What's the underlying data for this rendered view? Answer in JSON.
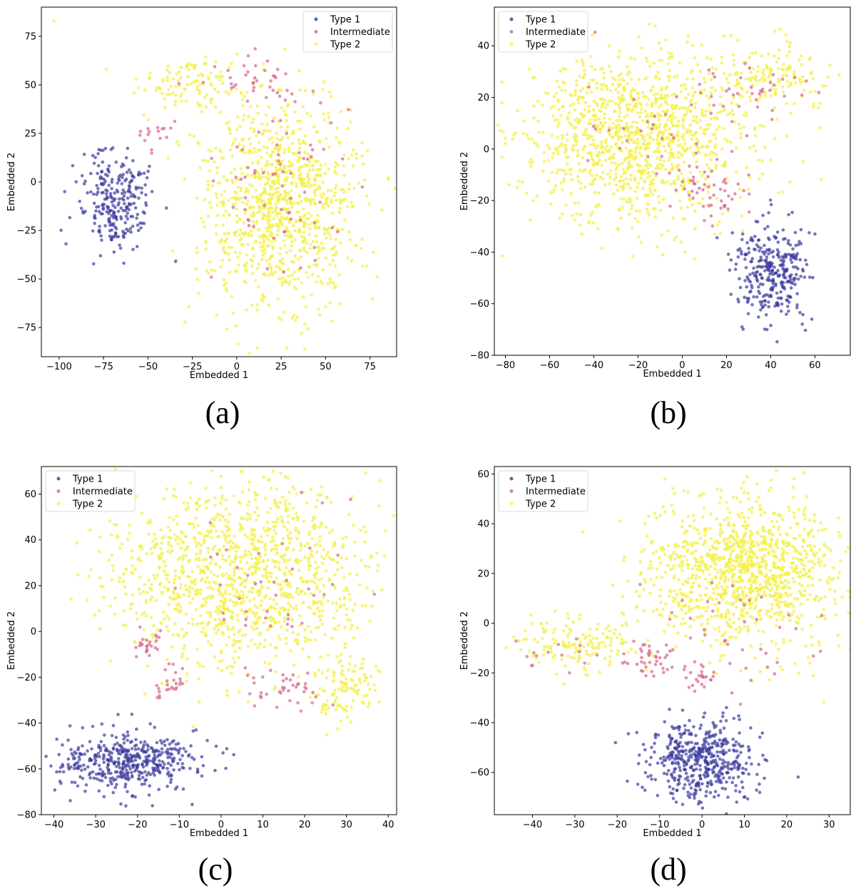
{
  "figure_title": "",
  "chart_data": [
    {
      "type": "scatter",
      "panel_label": "(a)",
      "xlabel": "Embedded 1",
      "ylabel": "Embedded 2",
      "xlim": [
        -110,
        90
      ],
      "ylim": [
        -90,
        90
      ],
      "xticks": [
        -100,
        -75,
        -50,
        -25,
        0,
        25,
        50,
        75
      ],
      "yticks": [
        -75,
        -50,
        -25,
        0,
        25,
        50,
        75
      ],
      "legend_position": "top-right",
      "series": [
        {
          "name": "Type 1",
          "color": "#3a3a9e",
          "regions": [
            {
              "center": [
                -68,
                -10
              ],
              "spread": [
                20,
                25
              ],
              "count": 260
            }
          ]
        },
        {
          "name": "Intermediate",
          "color": "#d6648a",
          "regions": [
            {
              "center": [
                10,
                55
              ],
              "spread": [
                25,
                14
              ],
              "count": 35
            },
            {
              "center": [
                -45,
                25
              ],
              "spread": [
                12,
                10
              ],
              "count": 15
            },
            {
              "center": [
                25,
                0
              ],
              "spread": [
                45,
                55
              ],
              "count": 70
            }
          ]
        },
        {
          "name": "Type 2",
          "color": "#f4f04a",
          "regions": [
            {
              "center": [
                25,
                -10
              ],
              "spread": [
                45,
                55
              ],
              "count": 1000
            },
            {
              "center": [
                -25,
                50
              ],
              "spread": [
                30,
                15
              ],
              "count": 110
            },
            {
              "center": [
                -103,
                83
              ],
              "spread": [
                1,
                1
              ],
              "count": 1
            }
          ]
        }
      ]
    },
    {
      "type": "scatter",
      "panel_label": "(b)",
      "xlabel": "Embedded 1",
      "ylabel": "Embedded 2",
      "xlim": [
        -85,
        76
      ],
      "ylim": [
        -80,
        55
      ],
      "xticks": [
        -80,
        -60,
        -40,
        -20,
        0,
        20,
        40,
        60
      ],
      "yticks": [
        -80,
        -60,
        -40,
        -20,
        0,
        20,
        40
      ],
      "legend_position": "top-left",
      "series": [
        {
          "name": "Type 1",
          "color": "#3a3a9e",
          "regions": [
            {
              "center": [
                40,
                -48
              ],
              "spread": [
                16,
                20
              ],
              "count": 320
            }
          ]
        },
        {
          "name": "Intermediate",
          "color": "#d6648a",
          "regions": [
            {
              "center": [
                15,
                -15
              ],
              "spread": [
                18,
                10
              ],
              "count": 50
            },
            {
              "center": [
                30,
                25
              ],
              "spread": [
                30,
                15
              ],
              "count": 40
            },
            {
              "center": [
                -15,
                10
              ],
              "spread": [
                40,
                25
              ],
              "count": 30
            }
          ]
        },
        {
          "name": "Type 2",
          "color": "#f4f04a",
          "regions": [
            {
              "center": [
                -20,
                5
              ],
              "spread": [
                50,
                33
              ],
              "count": 1150
            },
            {
              "center": [
                40,
                28
              ],
              "spread": [
                28,
                15
              ],
              "count": 150
            }
          ]
        }
      ]
    },
    {
      "type": "scatter",
      "panel_label": "(c)",
      "xlabel": "Embedded 1",
      "ylabel": "Embedded 2",
      "xlim": [
        -43,
        42
      ],
      "ylim": [
        -80,
        72
      ],
      "xticks": [
        -40,
        -30,
        -20,
        -10,
        0,
        10,
        20,
        30,
        40
      ],
      "yticks": [
        -80,
        -60,
        -40,
        -20,
        0,
        20,
        40,
        60
      ],
      "legend_position": "top-left",
      "series": [
        {
          "name": "Type 1",
          "color": "#3a3a9e",
          "regions": [
            {
              "center": [
                -22,
                -57
              ],
              "spread": [
                18,
                13
              ],
              "count": 450
            }
          ]
        },
        {
          "name": "Intermediate",
          "color": "#d6648a",
          "regions": [
            {
              "center": [
                -18,
                -5
              ],
              "spread": [
                4,
                6
              ],
              "count": 25
            },
            {
              "center": [
                -12,
                -22
              ],
              "spread": [
                6,
                8
              ],
              "count": 25
            },
            {
              "center": [
                15,
                -25
              ],
              "spread": [
                10,
                10
              ],
              "count": 40
            },
            {
              "center": [
                10,
                20
              ],
              "spread": [
                25,
                35
              ],
              "count": 40
            }
          ]
        },
        {
          "name": "Type 2",
          "color": "#f4f04a",
          "regions": [
            {
              "center": [
                5,
                25
              ],
              "spread": [
                30,
                40
              ],
              "count": 1200
            },
            {
              "center": [
                30,
                -25
              ],
              "spread": [
                8,
                15
              ],
              "count": 110
            }
          ]
        }
      ]
    },
    {
      "type": "scatter",
      "panel_label": "(d)",
      "xlabel": "Embedded 1",
      "ylabel": "Embedded 2",
      "xlim": [
        -49,
        35
      ],
      "ylim": [
        -77,
        63
      ],
      "xticks": [
        -40,
        -30,
        -20,
        -10,
        0,
        10,
        20,
        30
      ],
      "yticks": [
        -60,
        -40,
        -20,
        0,
        20,
        40,
        60
      ],
      "legend_position": "top-left",
      "series": [
        {
          "name": "Type 1",
          "color": "#3a3a9e",
          "regions": [
            {
              "center": [
                0,
                -55
              ],
              "spread": [
                13,
                15
              ],
              "count": 480
            }
          ]
        },
        {
          "name": "Intermediate",
          "color": "#d6648a",
          "regions": [
            {
              "center": [
                -12,
                -15
              ],
              "spread": [
                8,
                8
              ],
              "count": 40
            },
            {
              "center": [
                0,
                -22
              ],
              "spread": [
                5,
                5
              ],
              "count": 20
            },
            {
              "center": [
                10,
                -5
              ],
              "spread": [
                20,
                25
              ],
              "count": 45
            },
            {
              "center": [
                -35,
                -12
              ],
              "spread": [
                10,
                8
              ],
              "count": 15
            }
          ]
        },
        {
          "name": "Type 2",
          "color": "#f4f04a",
          "regions": [
            {
              "center": [
                10,
                20
              ],
              "spread": [
                22,
                30
              ],
              "count": 1150
            },
            {
              "center": [
                -30,
                -8
              ],
              "spread": [
                14,
                10
              ],
              "count": 150
            }
          ]
        }
      ]
    }
  ]
}
